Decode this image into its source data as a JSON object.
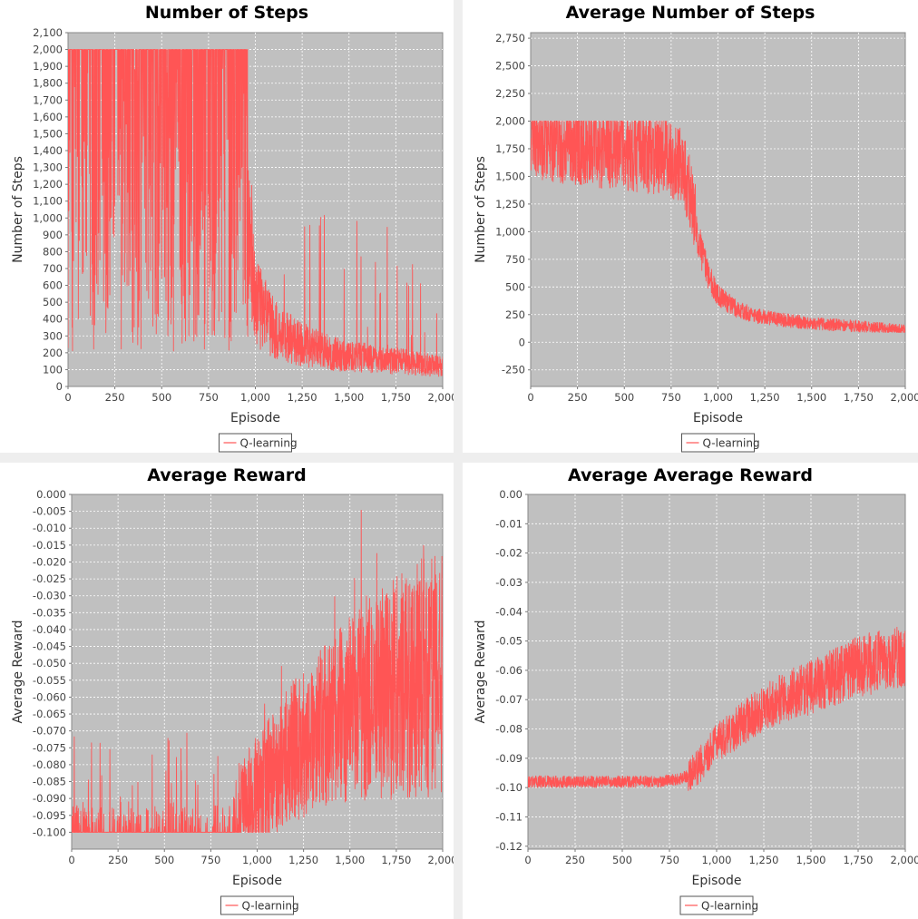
{
  "colors": {
    "series": "#ff5555",
    "plot_bg": "#c0c0c0",
    "grid": "#ffffff",
    "panel_bg": "#ffffff",
    "page_bg": "#eeeeee"
  },
  "legend_label": "Q-learning",
  "chart_data": [
    {
      "type": "line",
      "title": "Number of Steps",
      "xlabel": "Episode",
      "ylabel": "Number of Steps",
      "xlim": [
        0,
        2000
      ],
      "ylim": [
        0,
        2100
      ],
      "xticks": [
        0,
        250,
        500,
        750,
        1000,
        1250,
        1500,
        1750,
        2000
      ],
      "xtick_labels": [
        "0",
        "250",
        "500",
        "750",
        "1,000",
        "1,250",
        "1,500",
        "1,750",
        "2,000"
      ],
      "yticks": [
        0,
        100,
        200,
        300,
        400,
        500,
        600,
        700,
        800,
        900,
        1000,
        1100,
        1200,
        1300,
        1400,
        1500,
        1600,
        1700,
        1800,
        1900,
        2000,
        2100
      ],
      "ytick_labels": [
        "0",
        "100",
        "200",
        "300",
        "400",
        "500",
        "600",
        "700",
        "800",
        "900",
        "1,000",
        "1,100",
        "1,200",
        "1,300",
        "1,400",
        "1,500",
        "1,600",
        "1,700",
        "1,800",
        "1,900",
        "2,000",
        "2,100"
      ],
      "grid": true,
      "legend": "bottom-center",
      "series": [
        {
          "name": "Q-learning",
          "x": [
            0,
            100,
            200,
            300,
            400,
            500,
            600,
            700,
            800,
            900,
            950,
            1000,
            1100,
            1200,
            1300,
            1400,
            1500,
            1600,
            1700,
            1800,
            1900,
            2000
          ],
          "y": [
            2000,
            2000,
            2000,
            2000,
            2000,
            2000,
            2000,
            2000,
            2000,
            1600,
            1000,
            480,
            330,
            260,
            220,
            190,
            170,
            160,
            150,
            140,
            125,
            110
          ]
        }
      ]
    },
    {
      "type": "line",
      "title": "Average Number of Steps",
      "xlabel": "Episode",
      "ylabel": "Number of Steps",
      "xlim": [
        0,
        2000
      ],
      "ylim": [
        -400,
        2800
      ],
      "xticks": [
        0,
        250,
        500,
        750,
        1000,
        1250,
        1500,
        1750,
        2000
      ],
      "xtick_labels": [
        "0",
        "250",
        "500",
        "750",
        "1,000",
        "1,250",
        "1,500",
        "1,750",
        "2,000"
      ],
      "yticks": [
        -250,
        0,
        250,
        500,
        750,
        1000,
        1250,
        1500,
        1750,
        2000,
        2250,
        2500,
        2750
      ],
      "ytick_labels": [
        "-250",
        "0",
        "250",
        "500",
        "750",
        "1,000",
        "1,250",
        "1,500",
        "1,750",
        "2,000",
        "2,250",
        "2,500",
        "2,750"
      ],
      "grid": true,
      "legend": "bottom-center",
      "series": [
        {
          "name": "Q-learning",
          "x": [
            0,
            100,
            200,
            300,
            400,
            500,
            600,
            700,
            800,
            850,
            900,
            950,
            1000,
            1100,
            1200,
            1300,
            1400,
            1500,
            1600,
            1700,
            1800,
            1900,
            2000
          ],
          "y": [
            1850,
            1800,
            1780,
            1760,
            1740,
            1720,
            1700,
            1680,
            1600,
            1350,
            900,
            600,
            420,
            300,
            240,
            210,
            190,
            175,
            160,
            150,
            140,
            125,
            110
          ]
        }
      ]
    },
    {
      "type": "line",
      "title": "Average Reward",
      "xlabel": "Episode",
      "ylabel": "Average Reward",
      "xlim": [
        0,
        2000
      ],
      "ylim": [
        -0.105,
        0.0
      ],
      "xticks": [
        0,
        250,
        500,
        750,
        1000,
        1250,
        1500,
        1750,
        2000
      ],
      "xtick_labels": [
        "0",
        "250",
        "500",
        "750",
        "1,000",
        "1,250",
        "1,500",
        "1,750",
        "2,000"
      ],
      "yticks": [
        0.0,
        -0.005,
        -0.01,
        -0.015,
        -0.02,
        -0.025,
        -0.03,
        -0.035,
        -0.04,
        -0.045,
        -0.05,
        -0.055,
        -0.06,
        -0.065,
        -0.07,
        -0.075,
        -0.08,
        -0.085,
        -0.09,
        -0.095,
        -0.1
      ],
      "ytick_labels": [
        "0.000",
        "-0.005",
        "-0.010",
        "-0.015",
        "-0.020",
        "-0.025",
        "-0.030",
        "-0.035",
        "-0.040",
        "-0.045",
        "-0.050",
        "-0.055",
        "-0.060",
        "-0.065",
        "-0.070",
        "-0.075",
        "-0.080",
        "-0.085",
        "-0.090",
        "-0.095",
        "-0.100"
      ],
      "grid": true,
      "legend": "bottom-center",
      "series": [
        {
          "name": "Q-learning",
          "x": [
            0,
            100,
            200,
            300,
            400,
            500,
            600,
            700,
            800,
            900,
            1000,
            1100,
            1200,
            1300,
            1400,
            1500,
            1600,
            1700,
            1800,
            1900,
            2000
          ],
          "y": [
            -0.099,
            -0.099,
            -0.099,
            -0.099,
            -0.099,
            -0.099,
            -0.099,
            -0.099,
            -0.098,
            -0.096,
            -0.09,
            -0.084,
            -0.078,
            -0.074,
            -0.07,
            -0.067,
            -0.064,
            -0.062,
            -0.06,
            -0.058,
            -0.057
          ]
        }
      ]
    },
    {
      "type": "line",
      "title": "Average Average Reward",
      "xlabel": "Episode",
      "ylabel": "Average Reward",
      "xlim": [
        0,
        2000
      ],
      "ylim": [
        -0.121,
        0.0
      ],
      "xticks": [
        0,
        250,
        500,
        750,
        1000,
        1250,
        1500,
        1750,
        2000
      ],
      "xtick_labels": [
        "0",
        "250",
        "500",
        "750",
        "1,000",
        "1,250",
        "1,500",
        "1,750",
        "2,000"
      ],
      "yticks": [
        0.0,
        -0.01,
        -0.02,
        -0.03,
        -0.04,
        -0.05,
        -0.06,
        -0.07,
        -0.08,
        -0.09,
        -0.1,
        -0.11,
        -0.12
      ],
      "ytick_labels": [
        "0.00",
        "-0.01",
        "-0.02",
        "-0.03",
        "-0.04",
        "-0.05",
        "-0.06",
        "-0.07",
        "-0.08",
        "-0.09",
        "-0.10",
        "-0.11",
        "-0.12"
      ],
      "grid": true,
      "legend": "bottom-center",
      "series": [
        {
          "name": "Q-learning",
          "x": [
            0,
            100,
            200,
            300,
            400,
            500,
            600,
            700,
            800,
            850,
            900,
            950,
            1000,
            1100,
            1200,
            1300,
            1400,
            1500,
            1600,
            1700,
            1800,
            1900,
            2000
          ],
          "y": [
            -0.098,
            -0.098,
            -0.098,
            -0.098,
            -0.098,
            -0.098,
            -0.098,
            -0.098,
            -0.097,
            -0.096,
            -0.093,
            -0.089,
            -0.085,
            -0.08,
            -0.075,
            -0.071,
            -0.068,
            -0.066,
            -0.063,
            -0.06,
            -0.058,
            -0.056,
            -0.054
          ]
        }
      ]
    }
  ]
}
